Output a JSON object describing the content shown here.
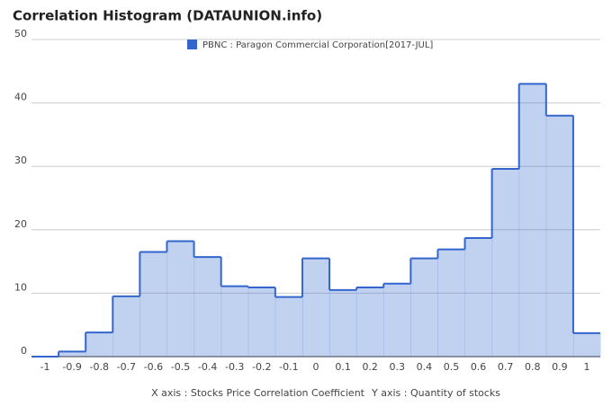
{
  "chart_data": {
    "type": "step-area",
    "title": "Correlation Histogram (DATAUNION.info)",
    "x_label": "X axis : Stocks Price Correlation Coefficient",
    "y_label": "Y axis : Quantity of stocks",
    "categories": [
      "-1",
      "-0.9",
      "-0.8",
      "-0.7",
      "-0.6",
      "-0.5",
      "-0.4",
      "-0.3",
      "-0.2",
      "-0.1",
      "0",
      "0.1",
      "0.2",
      "0.3",
      "0.4",
      "0.5",
      "0.6",
      "0.7",
      "0.8",
      "0.9",
      "1"
    ],
    "series": [
      {
        "name": "PBNC : Paragon Commercial Corporation[2017-JUL]",
        "color": "#3366cc",
        "values": [
          0,
          0.8,
          3.8,
          9.5,
          16.5,
          18.2,
          15.7,
          11.1,
          10.9,
          9.4,
          15.5,
          10.5,
          10.9,
          11.5,
          15.5,
          16.9,
          18.7,
          29.6,
          43,
          38,
          3.7
        ]
      }
    ],
    "ylim": [
      0,
      50
    ],
    "yticks": [
      0,
      10,
      20,
      30,
      40,
      50
    ],
    "grid": true
  }
}
